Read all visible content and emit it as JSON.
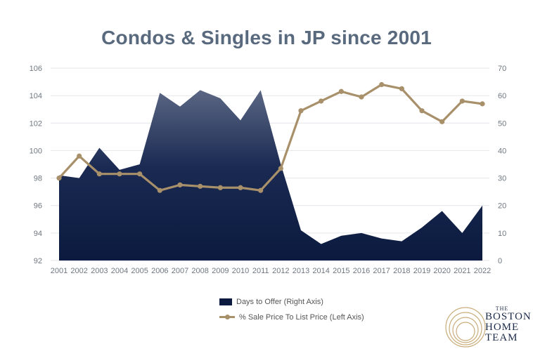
{
  "chart_data": {
    "type": "area+line",
    "title": "Condos & Singles in JP since 2001",
    "categories": [
      "2001",
      "2002",
      "2003",
      "2004",
      "2005",
      "2006",
      "2007",
      "2008",
      "2009",
      "2010",
      "2011",
      "2012",
      "2013",
      "2014",
      "2015",
      "2016",
      "2017",
      "2018",
      "2019",
      "2020",
      "2021",
      "2022"
    ],
    "left_axis": {
      "min": 92,
      "max": 106,
      "ticks": [
        "92",
        "94",
        "96",
        "98",
        "100",
        "102",
        "104",
        "106"
      ]
    },
    "right_axis": {
      "min": 0,
      "max": 70,
      "ticks": [
        "0",
        "10",
        "20",
        "30",
        "40",
        "50",
        "60",
        "70"
      ]
    },
    "series": [
      {
        "name": "Days to Offer (Right Axis)",
        "type": "area",
        "axis": "right",
        "color": "#0b1a3e",
        "values": [
          31,
          30,
          41,
          33,
          35,
          61,
          56,
          62,
          59,
          51,
          62,
          35,
          11,
          6,
          9,
          10,
          8,
          7,
          12,
          18,
          10,
          20
        ]
      },
      {
        "name": "% Sale Price To List Price (Left Axis)",
        "type": "line",
        "axis": "left",
        "color": "#a8906a",
        "values": [
          98.0,
          99.6,
          98.3,
          98.3,
          98.3,
          97.1,
          97.5,
          97.4,
          97.3,
          97.3,
          97.1,
          98.7,
          102.9,
          103.6,
          104.3,
          103.9,
          104.8,
          104.5,
          102.9,
          102.1,
          103.6,
          103.4
        ]
      }
    ]
  },
  "logo": {
    "line1": "THE",
    "line2": "BOSTON",
    "line3": "HOME",
    "line4": "TEAM"
  }
}
